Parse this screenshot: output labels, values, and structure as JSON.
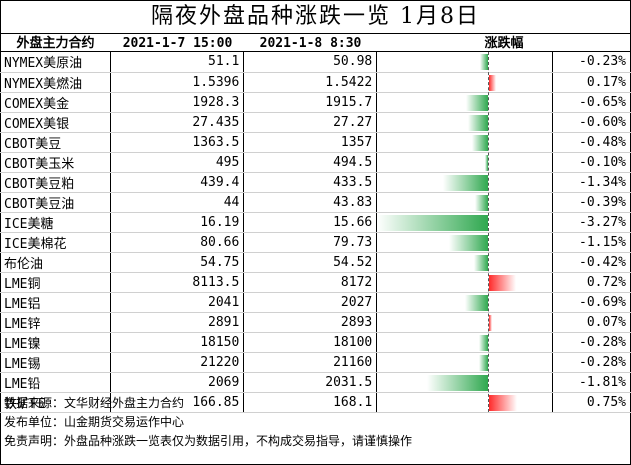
{
  "title": "隔夜外盘品种涨跌一览 1月8日",
  "header": {
    "name": "外盘主力合约",
    "prev": "2021-1-7 15:00",
    "cur": "2021-1-8 8:30",
    "change": "涨跌幅"
  },
  "chart_data": {
    "type": "table",
    "rows": [
      {
        "name": "NYMEX美原油",
        "prev": "51.1",
        "cur": "50.98",
        "pct_label": "-0.23%",
        "pct": -0.23
      },
      {
        "name": "NYMEX美燃油",
        "prev": "1.5396",
        "cur": "1.5422",
        "pct_label": "0.17%",
        "pct": 0.17
      },
      {
        "name": "COMEX美金",
        "prev": "1928.3",
        "cur": "1915.7",
        "pct_label": "-0.65%",
        "pct": -0.65
      },
      {
        "name": "COMEX美银",
        "prev": "27.435",
        "cur": "27.27",
        "pct_label": "-0.60%",
        "pct": -0.6
      },
      {
        "name": "CBOT美豆",
        "prev": "1363.5",
        "cur": "1357",
        "pct_label": "-0.48%",
        "pct": -0.48
      },
      {
        "name": "CBOT美玉米",
        "prev": "495",
        "cur": "494.5",
        "pct_label": "-0.10%",
        "pct": -0.1
      },
      {
        "name": "CBOT美豆粕",
        "prev": "439.4",
        "cur": "433.5",
        "pct_label": "-1.34%",
        "pct": -1.34
      },
      {
        "name": "CBOT美豆油",
        "prev": "44",
        "cur": "43.83",
        "pct_label": "-0.39%",
        "pct": -0.39
      },
      {
        "name": "ICE美糖",
        "prev": "16.19",
        "cur": "15.66",
        "pct_label": "-3.27%",
        "pct": -3.27
      },
      {
        "name": "ICE美棉花",
        "prev": "80.66",
        "cur": "79.73",
        "pct_label": "-1.15%",
        "pct": -1.15
      },
      {
        "name": "布伦油",
        "prev": "54.75",
        "cur": "54.52",
        "pct_label": "-0.42%",
        "pct": -0.42
      },
      {
        "name": "LME铜",
        "prev": "8113.5",
        "cur": "8172",
        "pct_label": "0.72%",
        "pct": 0.72
      },
      {
        "name": "LME铝",
        "prev": "2041",
        "cur": "2027",
        "pct_label": "-0.69%",
        "pct": -0.69
      },
      {
        "name": "LME锌",
        "prev": "2891",
        "cur": "2893",
        "pct_label": "0.07%",
        "pct": 0.07
      },
      {
        "name": "LME镍",
        "prev": "18150",
        "cur": "18100",
        "pct_label": "-0.28%",
        "pct": -0.28
      },
      {
        "name": "LME锡",
        "prev": "21220",
        "cur": "21160",
        "pct_label": "-0.28%",
        "pct": -0.28
      },
      {
        "name": "LME铅",
        "prev": "2069",
        "cur": "2031.5",
        "pct_label": "-1.81%",
        "pct": -1.81
      },
      {
        "name": "铁矿FE",
        "prev": "166.85",
        "cur": "168.1",
        "pct_label": "0.75%",
        "pct": 0.75
      }
    ],
    "colors": {
      "negative": "#2fa84f",
      "positive": "#ff2a2a"
    }
  },
  "footer": {
    "source": "数据来源：文华财经外盘主力合约",
    "publisher": "发布单位：山金期货交易运作中心",
    "disclaimer": "免责声明：外盘品种涨跌一览表仅为数据引用，不构成交易指导，请谨慎操作"
  }
}
